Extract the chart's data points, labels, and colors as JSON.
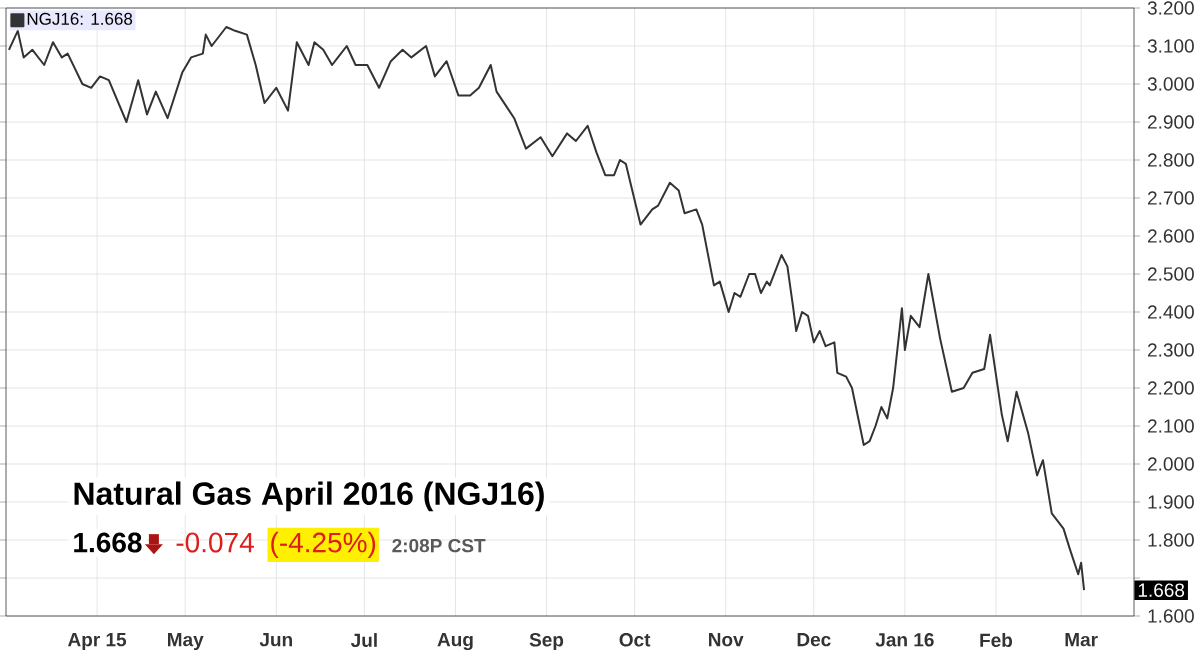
{
  "chart_data": {
    "type": "line",
    "title": "Natural Gas April 2016 (NGJ16)",
    "x": [
      "2015-03-02",
      "2015-03-05",
      "2015-03-07",
      "2015-03-10",
      "2015-03-14",
      "2015-03-17",
      "2015-03-20",
      "2015-03-22",
      "2015-03-27",
      "2015-03-30",
      "2015-04-02",
      "2015-04-05",
      "2015-04-11",
      "2015-04-15",
      "2015-04-18",
      "2015-04-21",
      "2015-04-25",
      "2015-04-30",
      "2015-05-03",
      "2015-05-07",
      "2015-05-08",
      "2015-05-10",
      "2015-05-15",
      "2015-05-18",
      "2015-05-22",
      "2015-05-25",
      "2015-05-28",
      "2015-06-01",
      "2015-06-05",
      "2015-06-08",
      "2015-06-12",
      "2015-06-14",
      "2015-06-17",
      "2015-06-20",
      "2015-06-22",
      "2015-06-25",
      "2015-06-28",
      "2015-07-02",
      "2015-07-06",
      "2015-07-10",
      "2015-07-14",
      "2015-07-17",
      "2015-07-22",
      "2015-07-25",
      "2015-07-29",
      "2015-08-02",
      "2015-08-06",
      "2015-08-09",
      "2015-08-13",
      "2015-08-15",
      "2015-08-21",
      "2015-08-25",
      "2015-08-30",
      "2015-09-03",
      "2015-09-08",
      "2015-09-11",
      "2015-09-15",
      "2015-09-18",
      "2015-09-21",
      "2015-09-24",
      "2015-09-26",
      "2015-09-28",
      "2015-10-03",
      "2015-10-07",
      "2015-10-09",
      "2015-10-13",
      "2015-10-16",
      "2015-10-18",
      "2015-10-22",
      "2015-10-24",
      "2015-10-28",
      "2015-10-30",
      "2015-11-02",
      "2015-11-04",
      "2015-11-06",
      "2015-11-09",
      "2015-11-11",
      "2015-11-13",
      "2015-11-15",
      "2015-11-16",
      "2015-11-20",
      "2015-11-22",
      "2015-11-24",
      "2015-11-25",
      "2015-11-27",
      "2015-11-29",
      "2015-12-01",
      "2015-12-03",
      "2015-12-05",
      "2015-12-08",
      "2015-12-09",
      "2015-12-12",
      "2015-12-14",
      "2015-12-18",
      "2015-12-20",
      "2015-12-22",
      "2015-12-24",
      "2015-12-26",
      "2015-12-28",
      "2015-12-31",
      "2016-01-01",
      "2016-01-03",
      "2016-01-06",
      "2016-01-09",
      "2016-01-13",
      "2016-01-17",
      "2016-01-21",
      "2016-01-24",
      "2016-01-28",
      "2016-01-30",
      "2016-02-03",
      "2016-02-05",
      "2016-02-08",
      "2016-02-12",
      "2016-02-15",
      "2016-02-17",
      "2016-02-20",
      "2016-02-22",
      "2016-02-24",
      "2016-02-26",
      "2016-02-29",
      "2016-03-01",
      "2016-03-02"
    ],
    "series": [
      {
        "name": "NGJ16: 1.668",
        "color": "#333333",
        "values": [
          3.09,
          3.14,
          3.07,
          3.09,
          3.05,
          3.11,
          3.07,
          3.08,
          3.0,
          2.99,
          3.02,
          3.01,
          2.9,
          3.01,
          2.92,
          2.98,
          2.91,
          3.03,
          3.07,
          3.08,
          3.13,
          3.1,
          3.15,
          3.14,
          3.13,
          3.05,
          2.95,
          2.99,
          2.93,
          3.11,
          3.05,
          3.11,
          3.09,
          3.05,
          3.07,
          3.1,
          3.05,
          3.05,
          2.99,
          3.06,
          3.09,
          3.07,
          3.1,
          3.02,
          3.06,
          2.97,
          2.97,
          2.99,
          3.05,
          2.98,
          2.91,
          2.83,
          2.86,
          2.81,
          2.87,
          2.85,
          2.89,
          2.82,
          2.76,
          2.76,
          2.8,
          2.79,
          2.63,
          2.67,
          2.68,
          2.74,
          2.72,
          2.66,
          2.67,
          2.63,
          2.47,
          2.48,
          2.4,
          2.45,
          2.44,
          2.5,
          2.5,
          2.45,
          2.48,
          2.47,
          2.55,
          2.52,
          2.41,
          2.35,
          2.4,
          2.39,
          2.32,
          2.35,
          2.31,
          2.32,
          2.24,
          2.23,
          2.2,
          2.05,
          2.06,
          2.1,
          2.15,
          2.12,
          2.2,
          2.41,
          2.3,
          2.39,
          2.36,
          2.5,
          2.33,
          2.19,
          2.2,
          2.24,
          2.25,
          2.34,
          2.13,
          2.06,
          2.19,
          2.08,
          1.97,
          2.01,
          1.87,
          1.85,
          1.83,
          1.78,
          1.71,
          1.74,
          1.668
        ]
      }
    ],
    "xlim": [
      "2015-03-01",
      "2016-03-19"
    ],
    "xticks": [
      {
        "value": "2015-04-01",
        "label": "Apr 15"
      },
      {
        "value": "2015-05-01",
        "label": "May"
      },
      {
        "value": "2015-06-01",
        "label": "Jun"
      },
      {
        "value": "2015-07-01",
        "label": "Jul"
      },
      {
        "value": "2015-08-01",
        "label": "Aug"
      },
      {
        "value": "2015-09-01",
        "label": "Sep"
      },
      {
        "value": "2015-10-01",
        "label": "Oct"
      },
      {
        "value": "2015-11-01",
        "label": "Nov"
      },
      {
        "value": "2015-12-01",
        "label": "Dec"
      },
      {
        "value": "2016-01-01",
        "label": "Jan 16"
      },
      {
        "value": "2016-02-01",
        "label": "Feb"
      },
      {
        "value": "2016-03-01",
        "label": "Mar"
      }
    ],
    "ylim": [
      1.6,
      3.2
    ],
    "yticks": [
      {
        "value": 1.6,
        "label": "1.600"
      },
      {
        "value": 1.7,
        "label": null
      },
      {
        "value": 1.8,
        "label": "1.800"
      },
      {
        "value": 1.9,
        "label": "1.900"
      },
      {
        "value": 2.0,
        "label": "2.000"
      },
      {
        "value": 2.1,
        "label": "2.100"
      },
      {
        "value": 2.2,
        "label": "2.200"
      },
      {
        "value": 2.3,
        "label": "2.300"
      },
      {
        "value": 2.4,
        "label": "2.400"
      },
      {
        "value": 2.5,
        "label": "2.500"
      },
      {
        "value": 2.6,
        "label": "2.600"
      },
      {
        "value": 2.7,
        "label": "2.700"
      },
      {
        "value": 2.8,
        "label": "2.800"
      },
      {
        "value": 2.9,
        "label": "2.900"
      },
      {
        "value": 3.0,
        "label": "3.000"
      },
      {
        "value": 3.1,
        "label": "3.100"
      },
      {
        "value": 3.2,
        "label": "3.200"
      }
    ],
    "annotations": [
      "1.668",
      "-0.074",
      "(-4.25%)",
      "2:08P CST",
      {
        "text": "1.668",
        "y": 1.668
      }
    ],
    "grid": true,
    "legend": "top left",
    "marker": "none",
    "line_style": "solid"
  }
}
